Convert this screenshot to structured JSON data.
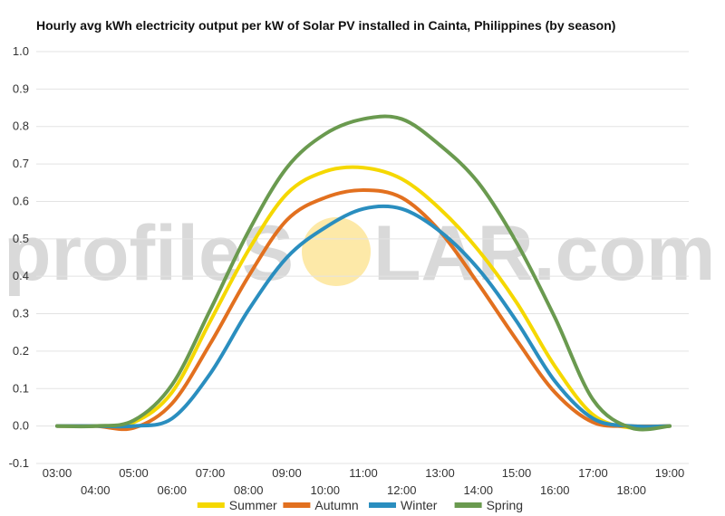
{
  "chart_data": {
    "type": "line",
    "title": "Hourly avg kWh electricity output per kW of Solar PV installed in Cainta, Philippines (by season)",
    "xlabel": "",
    "ylabel": "",
    "ylim": [
      -0.1,
      1.0
    ],
    "yticks": [
      "-0.1",
      "0.0",
      "0.1",
      "0.2",
      "0.3",
      "0.4",
      "0.5",
      "0.6",
      "0.7",
      "0.8",
      "0.9",
      "1.0"
    ],
    "xticks": [
      "03:00",
      "04:00",
      "05:00",
      "06:00",
      "07:00",
      "08:00",
      "09:00",
      "10:00",
      "11:00",
      "12:00",
      "13:00",
      "14:00",
      "15:00",
      "16:00",
      "17:00",
      "18:00",
      "19:00"
    ],
    "x_hours": [
      3,
      4,
      5,
      6,
      7,
      8,
      9,
      10,
      11,
      12,
      13,
      14,
      15,
      16,
      17,
      18,
      19
    ],
    "grid": true,
    "legend_position": "bottom",
    "series": [
      {
        "name": "Summer",
        "color": "#f5d800",
        "values": [
          0.0,
          0.0,
          0.01,
          0.09,
          0.28,
          0.47,
          0.62,
          0.68,
          0.69,
          0.66,
          0.58,
          0.47,
          0.33,
          0.16,
          0.03,
          -0.005,
          0.0
        ]
      },
      {
        "name": "Autumn",
        "color": "#e2701f",
        "values": [
          0.0,
          0.0,
          -0.005,
          0.06,
          0.22,
          0.4,
          0.55,
          0.61,
          0.63,
          0.61,
          0.52,
          0.38,
          0.23,
          0.09,
          0.01,
          0.0,
          0.0
        ]
      },
      {
        "name": "Winter",
        "color": "#2a8ebf",
        "values": [
          0.0,
          0.0,
          0.0,
          0.02,
          0.14,
          0.31,
          0.45,
          0.53,
          0.58,
          0.58,
          0.52,
          0.42,
          0.28,
          0.12,
          0.02,
          0.0,
          0.0
        ]
      },
      {
        "name": "Spring",
        "color": "#6a9a4f",
        "values": [
          0.0,
          0.0,
          0.015,
          0.11,
          0.31,
          0.52,
          0.69,
          0.78,
          0.82,
          0.82,
          0.75,
          0.65,
          0.49,
          0.29,
          0.07,
          -0.005,
          0.0
        ]
      }
    ]
  },
  "watermark": {
    "text_left": "profileS",
    "text_right": "LAR.com",
    "sun_color": "#fde9a8"
  }
}
